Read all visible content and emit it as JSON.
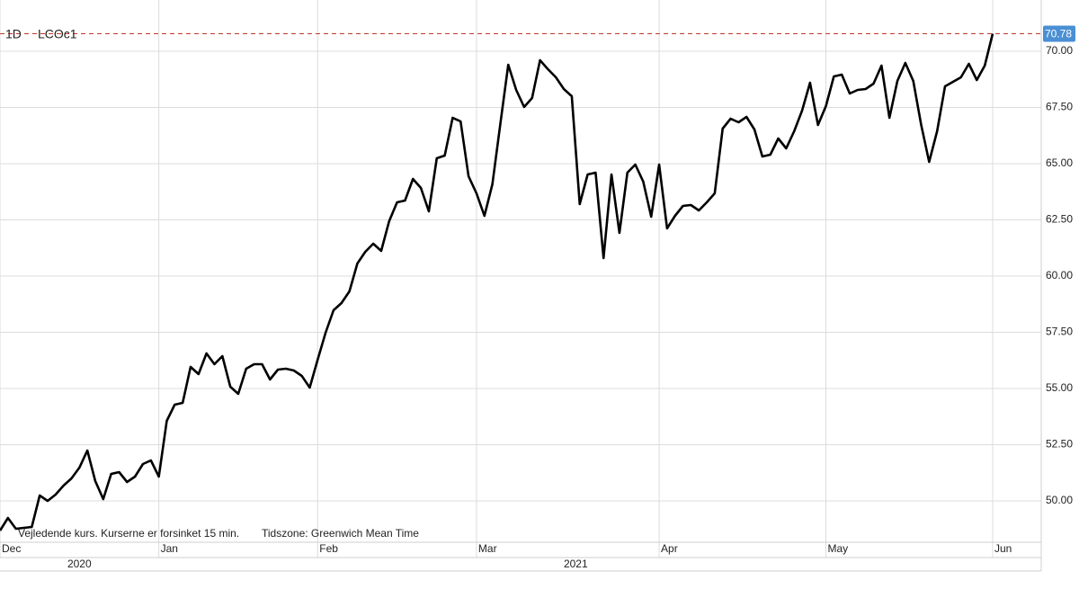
{
  "chart_data": {
    "type": "line",
    "interval": "1D",
    "symbol": "LCOc1",
    "notes": [
      "Vejledende kurs. Kurserne er forsinket 15 min.",
      "Tidszone: Greenwich Mean Time"
    ],
    "categories": [
      "Dec",
      null,
      null,
      null,
      null,
      null,
      null,
      null,
      null,
      null,
      null,
      null,
      null,
      null,
      null,
      null,
      null,
      null,
      null,
      null,
      "Jan",
      null,
      null,
      null,
      null,
      null,
      null,
      null,
      null,
      null,
      null,
      null,
      null,
      null,
      null,
      null,
      null,
      null,
      null,
      null,
      "Feb",
      null,
      null,
      null,
      null,
      null,
      null,
      null,
      null,
      null,
      null,
      null,
      null,
      null,
      null,
      null,
      null,
      null,
      null,
      null,
      "Mar",
      null,
      null,
      null,
      null,
      null,
      null,
      null,
      null,
      null,
      null,
      null,
      null,
      null,
      null,
      null,
      null,
      null,
      null,
      null,
      null,
      null,
      null,
      "Apr",
      null,
      null,
      null,
      null,
      null,
      null,
      null,
      null,
      null,
      null,
      null,
      null,
      null,
      null,
      null,
      null,
      null,
      null,
      null,
      null,
      "May",
      null,
      null,
      null,
      null,
      null,
      null,
      null,
      null,
      null,
      null,
      null,
      null,
      null,
      null,
      null,
      null,
      null,
      null,
      null,
      null,
      "Jun"
    ],
    "years": [
      {
        "label": "2020",
        "from": 0,
        "to": 20
      },
      {
        "label": "2021",
        "from": 20,
        "to": 125
      }
    ],
    "series": [
      {
        "name": "LCOc1",
        "color": "#000000",
        "values": [
          48.68,
          49.24,
          48.76,
          48.8,
          48.84,
          50.24,
          50.0,
          50.28,
          50.68,
          51.0,
          51.48,
          52.24,
          50.88,
          50.08,
          51.2,
          51.28,
          50.84,
          51.08,
          51.64,
          51.8,
          51.08,
          53.56,
          54.28,
          54.36,
          55.96,
          55.64,
          56.56,
          56.08,
          56.44,
          55.08,
          54.76,
          55.88,
          56.08,
          56.08,
          55.4,
          55.84,
          55.88,
          55.8,
          55.56,
          55.04,
          56.28,
          57.48,
          58.48,
          58.8,
          59.32,
          60.56,
          61.08,
          61.44,
          61.12,
          62.44,
          63.28,
          63.36,
          64.32,
          63.92,
          62.88,
          65.24,
          65.36,
          67.04,
          66.88,
          64.44,
          63.68,
          62.68,
          64.08,
          66.76,
          69.4,
          68.28,
          67.52,
          67.92,
          69.6,
          69.2,
          68.84,
          68.32,
          68.0,
          63.2,
          64.52,
          64.6,
          60.8,
          64.52,
          61.92,
          64.6,
          64.96,
          64.2,
          62.64,
          64.96,
          62.12,
          62.68,
          63.12,
          63.16,
          62.92,
          63.28,
          63.68,
          66.56,
          67.0,
          66.84,
          67.08,
          66.52,
          65.32,
          65.4,
          66.12,
          65.68,
          66.44,
          67.36,
          68.6,
          66.72,
          67.56,
          68.88,
          68.96,
          68.12,
          68.28,
          68.32,
          68.56,
          69.36,
          67.04,
          68.68,
          69.48,
          68.68,
          66.72,
          65.08,
          66.44,
          68.44,
          68.64,
          68.84,
          69.44,
          68.72,
          69.36,
          70.78
        ]
      }
    ],
    "ylim": [
      48.16,
      72.28
    ],
    "yticks": [
      {
        "value": 50,
        "label": "50.00"
      },
      {
        "value": 52.5,
        "label": "52.50"
      },
      {
        "value": 55,
        "label": "55.00"
      },
      {
        "value": 57.5,
        "label": "57.50"
      },
      {
        "value": 60,
        "label": "60.00"
      },
      {
        "value": 62.5,
        "label": "62.50"
      },
      {
        "value": 65,
        "label": "65.00"
      },
      {
        "value": 67.5,
        "label": "67.50"
      },
      {
        "value": 70,
        "label": "70.00"
      }
    ],
    "grid": true,
    "last_value_color": "#4a8fd4",
    "last_line_color": "#c0392b"
  }
}
